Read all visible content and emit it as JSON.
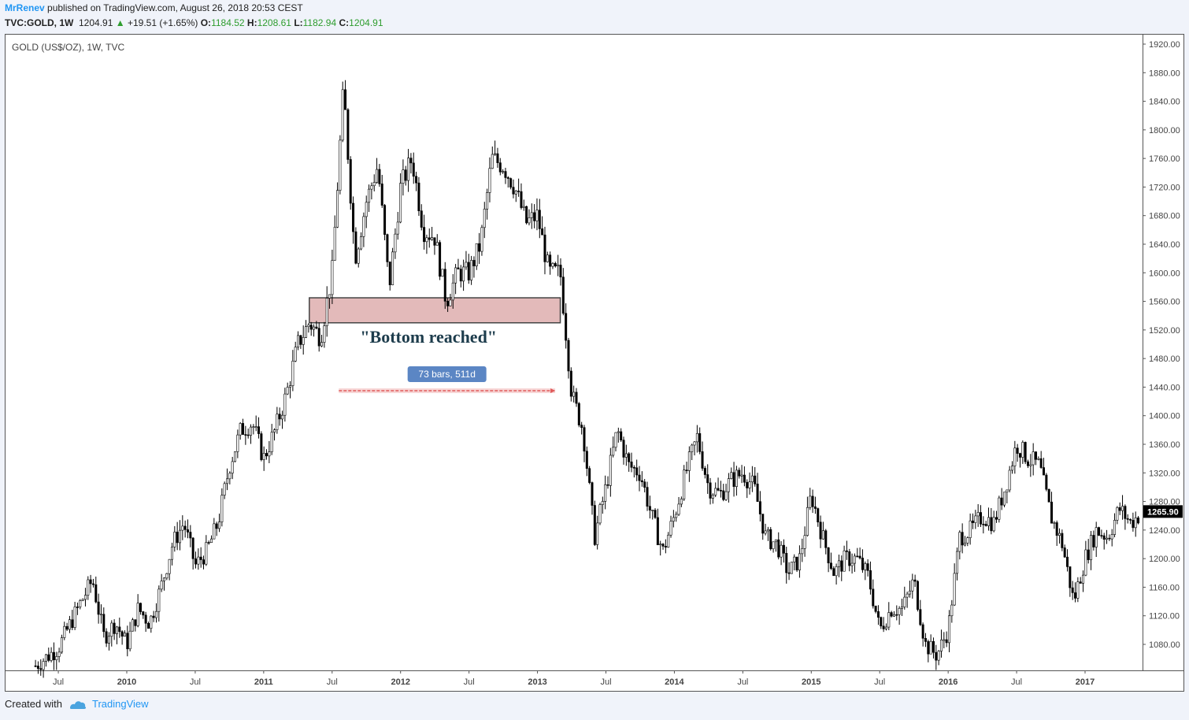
{
  "header": {
    "author": "MrRenev",
    "published": "published on TradingView.com, August 26, 2018 20:53 CEST",
    "symbol": "TVC:GOLD, 1W",
    "price": "1204.91",
    "change": "+19.51 (+1.65%)",
    "o_label": "O:",
    "o_value": "1184.52",
    "h_label": "H:",
    "h_value": "1208.61",
    "l_label": "L:",
    "l_value": "1182.94",
    "c_label": "C:",
    "c_value": "1204.91"
  },
  "footer": {
    "created_with": "Created with",
    "brand": "TradingView"
  },
  "colors": {
    "accent": "#2196f3",
    "zone_fill": "#d9a3a3",
    "bar_label_bg": "#5b86c4",
    "measure_line": "#e05a5a",
    "current_price_bg": "#000000"
  },
  "chart_data": {
    "type": "candlestick",
    "title": "GOLD (US$/OZ), 1W, TVC",
    "annotation_text": "\"Bottom reached\"",
    "measure_label": "73 bars, 511d",
    "current_price": "1265.90",
    "ylim": [
      1040,
      1930
    ],
    "y_ticks": [
      "1920.00",
      "1880.00",
      "1840.00",
      "1800.00",
      "1760.00",
      "1720.00",
      "1680.00",
      "1640.00",
      "1600.00",
      "1560.00",
      "1520.00",
      "1480.00",
      "1440.00",
      "1400.00",
      "1360.00",
      "1320.00",
      "1280.00",
      "1240.00",
      "1200.00",
      "1160.00",
      "1120.00",
      "1080.00"
    ],
    "x_ticks": [
      "Jul",
      "2010",
      "Jul",
      "2011",
      "Jul",
      "2012",
      "Jul",
      "2013",
      "Jul",
      "2014",
      "Jul",
      "2015",
      "Jul",
      "2016",
      "Jul",
      "2017"
    ],
    "zone": {
      "low": 1530,
      "high": 1565,
      "from": "2011-05",
      "to": "2013-03"
    },
    "measure": {
      "from": "2011-08",
      "to": "2013-02",
      "bars": 73,
      "days": 511
    },
    "anchors": [
      {
        "d": "2009-05",
        "v": 1050
      },
      {
        "d": "2009-07",
        "v": 1075
      },
      {
        "d": "2009-09",
        "v": 1140
      },
      {
        "d": "2009-10",
        "v": 1170
      },
      {
        "d": "2009-11",
        "v": 1090
      },
      {
        "d": "2009-12",
        "v": 1110
      },
      {
        "d": "2010-01",
        "v": 1080
      },
      {
        "d": "2010-02",
        "v": 1130
      },
      {
        "d": "2010-03",
        "v": 1110
      },
      {
        "d": "2010-04",
        "v": 1160
      },
      {
        "d": "2010-05",
        "v": 1220
      },
      {
        "d": "2010-06",
        "v": 1250
      },
      {
        "d": "2010-07",
        "v": 1190
      },
      {
        "d": "2010-08",
        "v": 1210
      },
      {
        "d": "2010-09",
        "v": 1250
      },
      {
        "d": "2010-10",
        "v": 1330
      },
      {
        "d": "2010-11",
        "v": 1380
      },
      {
        "d": "2010-12",
        "v": 1390
      },
      {
        "d": "2011-01",
        "v": 1340
      },
      {
        "d": "2011-02",
        "v": 1380
      },
      {
        "d": "2011-03",
        "v": 1430
      },
      {
        "d": "2011-04",
        "v": 1500
      },
      {
        "d": "2011-05",
        "v": 1530
      },
      {
        "d": "2011-06",
        "v": 1510
      },
      {
        "d": "2011-07",
        "v": 1600
      },
      {
        "d": "2011-08",
        "v": 1860
      },
      {
        "d": "2011-09",
        "v": 1620
      },
      {
        "d": "2011-10",
        "v": 1700
      },
      {
        "d": "2011-11",
        "v": 1750
      },
      {
        "d": "2011-12",
        "v": 1580
      },
      {
        "d": "2012-01",
        "v": 1720
      },
      {
        "d": "2012-02",
        "v": 1760
      },
      {
        "d": "2012-03",
        "v": 1660
      },
      {
        "d": "2012-04",
        "v": 1650
      },
      {
        "d": "2012-05",
        "v": 1560
      },
      {
        "d": "2012-06",
        "v": 1600
      },
      {
        "d": "2012-07",
        "v": 1600
      },
      {
        "d": "2012-08",
        "v": 1640
      },
      {
        "d": "2012-09",
        "v": 1760
      },
      {
        "d": "2012-10",
        "v": 1750
      },
      {
        "d": "2012-11",
        "v": 1720
      },
      {
        "d": "2012-12",
        "v": 1670
      },
      {
        "d": "2013-01",
        "v": 1680
      },
      {
        "d": "2013-02",
        "v": 1600
      },
      {
        "d": "2013-03",
        "v": 1600
      },
      {
        "d": "2013-04",
        "v": 1430
      },
      {
        "d": "2013-05",
        "v": 1380
      },
      {
        "d": "2013-06",
        "v": 1230
      },
      {
        "d": "2013-07",
        "v": 1300
      },
      {
        "d": "2013-08",
        "v": 1380
      },
      {
        "d": "2013-09",
        "v": 1330
      },
      {
        "d": "2013-10",
        "v": 1320
      },
      {
        "d": "2013-11",
        "v": 1260
      },
      {
        "d": "2013-12",
        "v": 1210
      },
      {
        "d": "2014-01",
        "v": 1260
      },
      {
        "d": "2014-02",
        "v": 1320
      },
      {
        "d": "2014-03",
        "v": 1370
      },
      {
        "d": "2014-04",
        "v": 1300
      },
      {
        "d": "2014-05",
        "v": 1290
      },
      {
        "d": "2014-06",
        "v": 1310
      },
      {
        "d": "2014-07",
        "v": 1320
      },
      {
        "d": "2014-08",
        "v": 1300
      },
      {
        "d": "2014-09",
        "v": 1230
      },
      {
        "d": "2014-10",
        "v": 1220
      },
      {
        "d": "2014-11",
        "v": 1180
      },
      {
        "d": "2014-12",
        "v": 1200
      },
      {
        "d": "2015-01",
        "v": 1290
      },
      {
        "d": "2015-02",
        "v": 1230
      },
      {
        "d": "2015-03",
        "v": 1180
      },
      {
        "d": "2015-04",
        "v": 1200
      },
      {
        "d": "2015-05",
        "v": 1200
      },
      {
        "d": "2015-06",
        "v": 1175
      },
      {
        "d": "2015-07",
        "v": 1100
      },
      {
        "d": "2015-08",
        "v": 1130
      },
      {
        "d": "2015-09",
        "v": 1130
      },
      {
        "d": "2015-10",
        "v": 1170
      },
      {
        "d": "2015-11",
        "v": 1080
      },
      {
        "d": "2015-12",
        "v": 1065
      },
      {
        "d": "2016-01",
        "v": 1100
      },
      {
        "d": "2016-02",
        "v": 1230
      },
      {
        "d": "2016-03",
        "v": 1240
      },
      {
        "d": "2016-04",
        "v": 1260
      },
      {
        "d": "2016-05",
        "v": 1250
      },
      {
        "d": "2016-06",
        "v": 1300
      },
      {
        "d": "2016-07",
        "v": 1360
      },
      {
        "d": "2016-08",
        "v": 1340
      },
      {
        "d": "2016-09",
        "v": 1330
      },
      {
        "d": "2016-10",
        "v": 1260
      },
      {
        "d": "2016-11",
        "v": 1220
      },
      {
        "d": "2016-12",
        "v": 1140
      },
      {
        "d": "2017-01",
        "v": 1200
      },
      {
        "d": "2017-02",
        "v": 1240
      },
      {
        "d": "2017-03",
        "v": 1230
      },
      {
        "d": "2017-04",
        "v": 1270
      },
      {
        "d": "2017-05",
        "v": 1250
      },
      {
        "d": "2017-06",
        "v": 1265
      }
    ]
  }
}
